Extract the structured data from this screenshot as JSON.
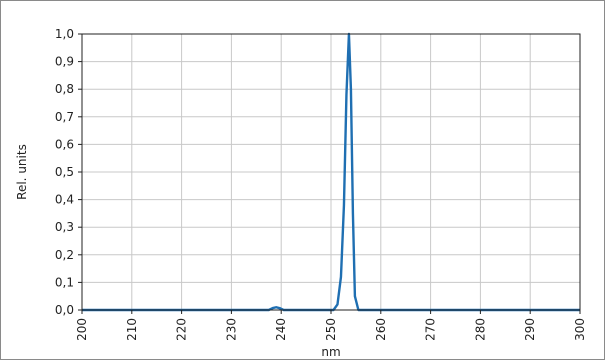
{
  "chart_data": {
    "type": "line",
    "title": "",
    "xlabel": "nm",
    "ylabel": "Rel. units",
    "xlim": [
      200,
      300
    ],
    "ylim": [
      0.0,
      1.0
    ],
    "x_ticks": [
      200,
      210,
      220,
      230,
      240,
      250,
      260,
      270,
      280,
      290,
      300
    ],
    "x_tick_labels": [
      "200",
      "210",
      "220",
      "230",
      "240",
      "250",
      "260",
      "270",
      "280",
      "290",
      "300"
    ],
    "y_ticks": [
      0.0,
      0.1,
      0.2,
      0.3,
      0.4,
      0.5,
      0.6,
      0.7,
      0.8,
      0.9,
      1.0
    ],
    "y_tick_labels": [
      "0,0",
      "0,1",
      "0,2",
      "0,3",
      "0,4",
      "0,5",
      "0,6",
      "0,7",
      "0,8",
      "0,9",
      "1,0"
    ],
    "grid": true,
    "legend": "none",
    "series": [
      {
        "color": "#1f6fb2",
        "x": [
          200,
          237.5,
          238.3,
          239.0,
          239.8,
          240.5,
          250.5,
          251.3,
          252.0,
          252.6,
          253.1,
          253.6,
          254.0,
          254.4,
          254.8,
          255.5,
          300
        ],
        "y": [
          0.0,
          0.0,
          0.007,
          0.01,
          0.006,
          0.0,
          0.0,
          0.02,
          0.12,
          0.38,
          0.78,
          1.0,
          0.8,
          0.35,
          0.05,
          0.0,
          0.0
        ]
      }
    ]
  }
}
